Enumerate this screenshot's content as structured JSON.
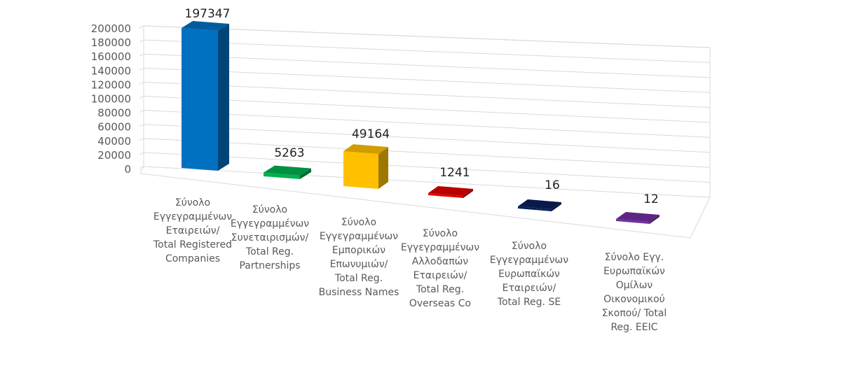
{
  "chart_data": {
    "type": "bar",
    "style": "3d-column",
    "ylim": [
      0,
      200000
    ],
    "yticks": [
      0,
      20000,
      40000,
      60000,
      80000,
      100000,
      120000,
      140000,
      160000,
      180000,
      200000
    ],
    "ytick_labels": [
      "0",
      "20000",
      "40000",
      "60000",
      "80000",
      "100000",
      "120000",
      "140000",
      "160000",
      "180000",
      "200000"
    ],
    "gridlines": true,
    "categories": [
      {
        "lines": [
          "Σύνολο",
          "Εγγεγραμμένων",
          "Εταιρειών/",
          "Total Registered",
          "Companies"
        ],
        "value": 197347,
        "value_label": "197347",
        "color": "#0070C0"
      },
      {
        "lines": [
          "Σύνολο",
          "Εγγεγραμμένων",
          "Συνεταιρισμών/",
          "Total Reg.",
          "Partnerships"
        ],
        "value": 5263,
        "value_label": "5263",
        "color": "#00B050"
      },
      {
        "lines": [
          "Σύνολο",
          "Εγγεγραμμένων",
          "Εμπορικών",
          "Επωνυμιών/",
          "Total Reg.",
          "Business Names"
        ],
        "value": 49164,
        "value_label": "49164",
        "color": "#FFC000"
      },
      {
        "lines": [
          "Σύνολο",
          "Εγγεγραμμένων",
          "Αλλοδαπών",
          "Εταιρειών/",
          "Total Reg.",
          "Overseas Co"
        ],
        "value": 1241,
        "value_label": "1241",
        "color": "#E00000"
      },
      {
        "lines": [
          "Σύνολο",
          "Εγγεγραμμένων",
          "Ευρωπαϊκών",
          "Εταιρειών/",
          "Total Reg. SE"
        ],
        "value": 16,
        "value_label": "16",
        "color": "#0A1F5C"
      },
      {
        "lines": [
          "Σύνολο Εγγ.",
          "Ευρωπαϊκών",
          "Ομίλων",
          "Οικονομικού",
          "Σκοπού/ Total",
          "Reg. EEIC"
        ],
        "value": 12,
        "value_label": "12",
        "color": "#7030A0"
      }
    ]
  }
}
